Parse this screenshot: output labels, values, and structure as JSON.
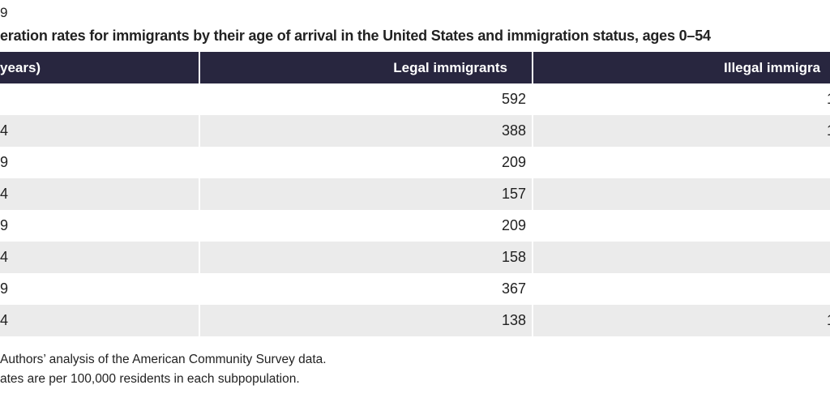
{
  "header": {
    "label": "9",
    "title": "eration rates for immigrants by their age of arrival in the United States and immigration status, ages 0–54"
  },
  "table": {
    "columns": [
      "years)",
      "Legal immigrants",
      "Illegal immigra"
    ],
    "rows": [
      [
        null,
        "592",
        "1"
      ],
      [
        "4",
        "388",
        "1"
      ],
      [
        "9",
        "209",
        null
      ],
      [
        "4",
        "157",
        null
      ],
      [
        "9",
        "209",
        null
      ],
      [
        "4",
        "158",
        null
      ],
      [
        "9",
        "367",
        null
      ],
      [
        "4",
        "138",
        "1"
      ]
    ]
  },
  "notes": {
    "source": "Authors’ analysis of the American Community Survey data.",
    "note": "ates are per 100,000 residents in each subpopulation."
  }
}
